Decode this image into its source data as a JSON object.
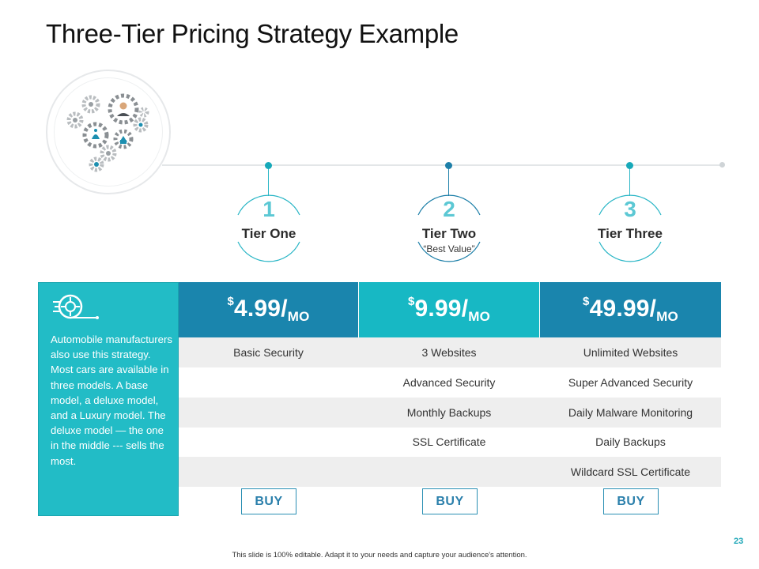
{
  "slide": {
    "title": "Three-Tier Pricing Strategy Example",
    "page_number": "23",
    "footer": "This slide is 100% editable. Adapt it to your needs and capture your audience's attention."
  },
  "colors": {
    "teal": "#22bcc6",
    "dark_blue": "#1a85ad",
    "mid_teal": "#17b8c4",
    "row_gray": "#eeeeee",
    "buy_border": "#2a8fb3"
  },
  "tiers": [
    {
      "number": "1",
      "name": "Tier One",
      "subtitle": ""
    },
    {
      "number": "2",
      "name": "Tier Two",
      "subtitle": "“Best Value”"
    },
    {
      "number": "3",
      "name": "Tier Three",
      "subtitle": ""
    }
  ],
  "side_panel": {
    "icon": "car-wheel-icon",
    "text": "Automobile manufacturers also use this strategy. Most cars are available in three models. A base model, a deluxe model, and a Luxury model. The deluxe model — the one in the middle --- sells the most."
  },
  "prices": [
    {
      "currency": "$",
      "amount": "4.99/",
      "period": "MO"
    },
    {
      "currency": "$",
      "amount": "9.99/",
      "period": "MO"
    },
    {
      "currency": "$",
      "amount": "49.99/",
      "period": "MO"
    }
  ],
  "features": [
    [
      "Basic Security",
      "3 Websites",
      "Unlimited Websites"
    ],
    [
      "",
      "Advanced Security",
      "Super Advanced Security"
    ],
    [
      "",
      "Monthly Backups",
      "Daily Malware Monitoring"
    ],
    [
      "",
      "SSL Certificate",
      "Daily Backups"
    ],
    [
      "",
      "",
      "Wildcard SSL Certificate"
    ]
  ],
  "buy_label": "BUY",
  "hero_icon": "business-gears-icon"
}
